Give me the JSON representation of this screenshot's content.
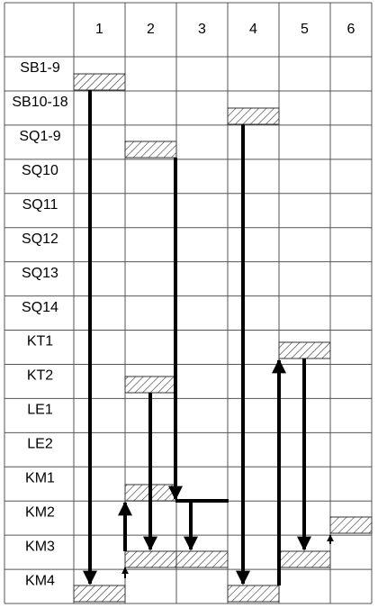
{
  "columns": [
    "1",
    "2",
    "3",
    "4",
    "5",
    "6"
  ],
  "rows": [
    "SB1-9",
    "SB10-18",
    "SQ1-9",
    "SQ10",
    "SQ11",
    "SQ12",
    "SQ13",
    "SQ14",
    "KT1",
    "KT2",
    "LE1",
    "LE2",
    "KM1",
    "KM2",
    "KM3",
    "KM4"
  ]
}
